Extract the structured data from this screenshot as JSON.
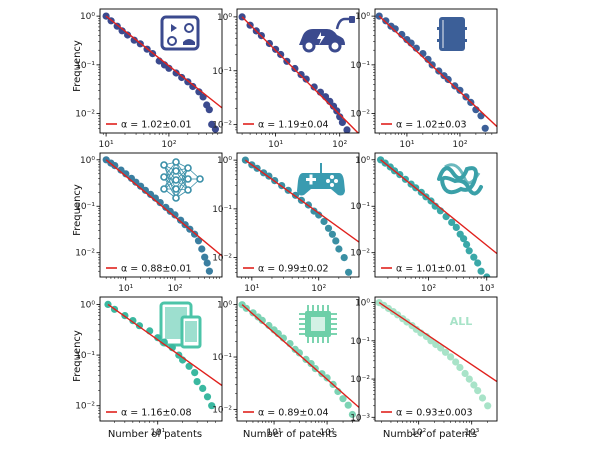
{
  "figure": {
    "ylabel": "Frequency",
    "xlabel": "Number of patents",
    "fit_color": "#e0211d"
  },
  "chart_data": [
    {
      "type": "scatter",
      "xscale": "log",
      "yscale": "log",
      "xlim": [
        8,
        700
      ],
      "ylim": [
        0.004,
        1.4
      ],
      "fit": {
        "alpha": 1.02,
        "error": 0.01,
        "label": "α = 1.02±0.01"
      },
      "icon": "entertainment-devices-icon",
      "color": "#3b4a8e",
      "icon_color": "#3b4a8e",
      "points": [
        [
          10,
          1
        ],
        [
          12,
          0.8
        ],
        [
          15,
          0.62
        ],
        [
          18,
          0.5
        ],
        [
          22,
          0.41
        ],
        [
          28,
          0.32
        ],
        [
          35,
          0.27
        ],
        [
          45,
          0.21
        ],
        [
          55,
          0.17
        ],
        [
          70,
          0.12
        ],
        [
          85,
          0.1
        ],
        [
          100,
          0.085
        ],
        [
          130,
          0.068
        ],
        [
          160,
          0.055
        ],
        [
          200,
          0.045
        ],
        [
          240,
          0.036
        ],
        [
          300,
          0.028
        ],
        [
          350,
          0.022
        ],
        [
          400,
          0.015
        ],
        [
          440,
          0.012
        ],
        [
          480,
          0.006
        ],
        [
          550,
          0.0048
        ]
      ]
    },
    {
      "type": "scatter",
      "xscale": "log",
      "yscale": "log",
      "xlim": [
        2.5,
        200
      ],
      "ylim": [
        0.007,
        1.4
      ],
      "fit": {
        "alpha": 1.19,
        "error": 0.04,
        "label": "α = 1.19±0.04"
      },
      "icon": "electric-car-icon",
      "color": "#3b4a8e",
      "icon_color": "#3b4a8e",
      "points": [
        [
          3,
          1
        ],
        [
          4,
          0.7
        ],
        [
          5,
          0.55
        ],
        [
          6,
          0.45
        ],
        [
          8,
          0.32
        ],
        [
          10,
          0.25
        ],
        [
          12,
          0.2
        ],
        [
          15,
          0.15
        ],
        [
          20,
          0.11
        ],
        [
          25,
          0.085
        ],
        [
          30,
          0.07
        ],
        [
          40,
          0.05
        ],
        [
          50,
          0.04
        ],
        [
          60,
          0.033
        ],
        [
          70,
          0.027
        ],
        [
          80,
          0.022
        ],
        [
          90,
          0.018
        ],
        [
          100,
          0.014
        ],
        [
          110,
          0.011
        ],
        [
          130,
          0.008
        ]
      ]
    },
    {
      "type": "scatter",
      "xscale": "log",
      "yscale": "log",
      "xlim": [
        2.5,
        500
      ],
      "ylim": [
        0.004,
        1.4
      ],
      "fit": {
        "alpha": 1.02,
        "error": 0.03,
        "label": "α = 1.02±0.03"
      },
      "icon": "oil-barrel-icon",
      "color": "#3c5f98",
      "icon_color": "#3c5f98",
      "points": [
        [
          3,
          1
        ],
        [
          4,
          0.8
        ],
        [
          5,
          0.62
        ],
        [
          6,
          0.55
        ],
        [
          8,
          0.42
        ],
        [
          10,
          0.33
        ],
        [
          12,
          0.28
        ],
        [
          15,
          0.22
        ],
        [
          20,
          0.17
        ],
        [
          25,
          0.13
        ],
        [
          30,
          0.1
        ],
        [
          40,
          0.075
        ],
        [
          50,
          0.06
        ],
        [
          60,
          0.05
        ],
        [
          80,
          0.037
        ],
        [
          100,
          0.03
        ],
        [
          130,
          0.022
        ],
        [
          160,
          0.017
        ],
        [
          200,
          0.012
        ],
        [
          250,
          0.009
        ],
        [
          300,
          0.005
        ]
      ]
    },
    {
      "type": "scatter",
      "xscale": "log",
      "yscale": "log",
      "xlim": [
        3,
        900
      ],
      "ylim": [
        0.003,
        1.4
      ],
      "fit": {
        "alpha": 0.88,
        "error": 0.01,
        "label": "α = 0.88±0.01"
      },
      "icon": "neural-network-icon",
      "color": "#3a7ea0",
      "icon_color": "#3a8fa8",
      "points": [
        [
          4,
          1
        ],
        [
          5,
          0.85
        ],
        [
          6,
          0.75
        ],
        [
          8,
          0.6
        ],
        [
          10,
          0.5
        ],
        [
          13,
          0.4
        ],
        [
          16,
          0.33
        ],
        [
          20,
          0.27
        ],
        [
          25,
          0.22
        ],
        [
          32,
          0.18
        ],
        [
          40,
          0.15
        ],
        [
          50,
          0.12
        ],
        [
          65,
          0.095
        ],
        [
          80,
          0.078
        ],
        [
          100,
          0.065
        ],
        [
          130,
          0.05
        ],
        [
          160,
          0.04
        ],
        [
          200,
          0.032
        ],
        [
          250,
          0.025
        ],
        [
          300,
          0.018
        ],
        [
          350,
          0.012
        ],
        [
          400,
          0.008
        ],
        [
          450,
          0.006
        ],
        [
          500,
          0.004
        ]
      ]
    },
    {
      "type": "scatter",
      "xscale": "log",
      "yscale": "log",
      "xlim": [
        6,
        400
      ],
      "ylim": [
        0.004,
        1.4
      ],
      "fit": {
        "alpha": 0.99,
        "error": 0.02,
        "label": "α = 0.99±0.02"
      },
      "icon": "gamepad-icon",
      "color": "#3a8fa3",
      "icon_color": "#3a9bb0",
      "points": [
        [
          8,
          1
        ],
        [
          10,
          0.8
        ],
        [
          12,
          0.68
        ],
        [
          15,
          0.55
        ],
        [
          18,
          0.47
        ],
        [
          22,
          0.38
        ],
        [
          28,
          0.3
        ],
        [
          35,
          0.24
        ],
        [
          45,
          0.19
        ],
        [
          55,
          0.15
        ],
        [
          70,
          0.12
        ],
        [
          85,
          0.09
        ],
        [
          100,
          0.075
        ],
        [
          120,
          0.055
        ],
        [
          140,
          0.04
        ],
        [
          160,
          0.03
        ],
        [
          180,
          0.022
        ],
        [
          200,
          0.015
        ],
        [
          240,
          0.01
        ],
        [
          280,
          0.005
        ]
      ]
    },
    {
      "type": "scatter",
      "xscale": "log",
      "yscale": "log",
      "xlim": [
        12,
        1500
      ],
      "ylim": [
        0.003,
        1.4
      ],
      "fit": {
        "alpha": 1.01,
        "error": 0.01,
        "label": "α = 1.01±0.01"
      },
      "icon": "protein-structure-icon",
      "color": "#3aa8a8",
      "icon_color": "#3aa0a8",
      "points": [
        [
          15,
          1
        ],
        [
          18,
          0.85
        ],
        [
          22,
          0.7
        ],
        [
          26,
          0.58
        ],
        [
          32,
          0.48
        ],
        [
          40,
          0.38
        ],
        [
          50,
          0.3
        ],
        [
          60,
          0.25
        ],
        [
          75,
          0.2
        ],
        [
          90,
          0.16
        ],
        [
          110,
          0.13
        ],
        [
          130,
          0.1
        ],
        [
          160,
          0.08
        ],
        [
          200,
          0.06
        ],
        [
          250,
          0.045
        ],
        [
          300,
          0.035
        ],
        [
          350,
          0.025
        ],
        [
          400,
          0.02
        ],
        [
          450,
          0.015
        ],
        [
          500,
          0.011
        ],
        [
          600,
          0.008
        ],
        [
          700,
          0.006
        ],
        [
          800,
          0.004
        ],
        [
          1000,
          0.003
        ]
      ]
    },
    {
      "type": "scatter",
      "xscale": "log",
      "yscale": "log",
      "xlim": [
        2,
        60
      ],
      "ylim": [
        0.005,
        1.4
      ],
      "fit": {
        "alpha": 1.16,
        "error": 0.08,
        "label": "α = 1.16±0.08"
      },
      "icon": "tablet-phone-icon",
      "color": "#3ab8a0",
      "icon_color": "#4cc4a8",
      "points": [
        [
          2.5,
          1
        ],
        [
          3,
          0.8
        ],
        [
          4,
          0.6
        ],
        [
          5,
          0.48
        ],
        [
          6,
          0.38
        ],
        [
          8,
          0.3
        ],
        [
          10,
          0.22
        ],
        [
          12,
          0.18
        ],
        [
          15,
          0.14
        ],
        [
          18,
          0.1
        ],
        [
          20,
          0.08
        ],
        [
          24,
          0.06
        ],
        [
          28,
          0.045
        ],
        [
          30,
          0.03
        ],
        [
          35,
          0.022
        ],
        [
          40,
          0.015
        ],
        [
          45,
          0.01
        ]
      ]
    },
    {
      "type": "scatter",
      "xscale": "log",
      "yscale": "log",
      "xlim": [
        2,
        400
      ],
      "ylim": [
        0.006,
        1.4
      ],
      "fit": {
        "alpha": 0.89,
        "error": 0.04,
        "label": "α = 0.89±0.04"
      },
      "icon": "microchip-icon",
      "color": "#7cd3b4",
      "icon_color": "#6dcfa8",
      "points": [
        [
          2.5,
          1
        ],
        [
          3,
          0.85
        ],
        [
          4,
          0.7
        ],
        [
          5,
          0.58
        ],
        [
          6,
          0.5
        ],
        [
          8,
          0.4
        ],
        [
          10,
          0.33
        ],
        [
          12,
          0.28
        ],
        [
          15,
          0.23
        ],
        [
          20,
          0.18
        ],
        [
          25,
          0.14
        ],
        [
          30,
          0.12
        ],
        [
          40,
          0.09
        ],
        [
          50,
          0.075
        ],
        [
          60,
          0.06
        ],
        [
          80,
          0.048
        ],
        [
          100,
          0.04
        ],
        [
          130,
          0.03
        ],
        [
          160,
          0.022
        ],
        [
          200,
          0.016
        ],
        [
          250,
          0.012
        ],
        [
          300,
          0.008
        ]
      ]
    },
    {
      "type": "scatter",
      "xscale": "log",
      "yscale": "log",
      "xlim": [
        15,
        3000
      ],
      "ylim": [
        0.0008,
        1.4
      ],
      "fit": {
        "alpha": 0.93,
        "error": 0.003,
        "label": "α = 0.93±0.003"
      },
      "icon": "",
      "tag": "ALL",
      "color": "#a8e3c8",
      "icon_color": "#a8e3c8",
      "points": [
        [
          18,
          1
        ],
        [
          22,
          0.85
        ],
        [
          27,
          0.7
        ],
        [
          33,
          0.58
        ],
        [
          40,
          0.48
        ],
        [
          50,
          0.38
        ],
        [
          60,
          0.31
        ],
        [
          75,
          0.25
        ],
        [
          90,
          0.2
        ],
        [
          110,
          0.16
        ],
        [
          140,
          0.13
        ],
        [
          170,
          0.1
        ],
        [
          210,
          0.08
        ],
        [
          260,
          0.065
        ],
        [
          320,
          0.05
        ],
        [
          400,
          0.038
        ],
        [
          500,
          0.028
        ],
        [
          600,
          0.02
        ],
        [
          750,
          0.014
        ],
        [
          900,
          0.01
        ],
        [
          1100,
          0.007
        ],
        [
          1300,
          0.005
        ],
        [
          1600,
          0.0032
        ],
        [
          2000,
          0.002
        ]
      ]
    }
  ]
}
